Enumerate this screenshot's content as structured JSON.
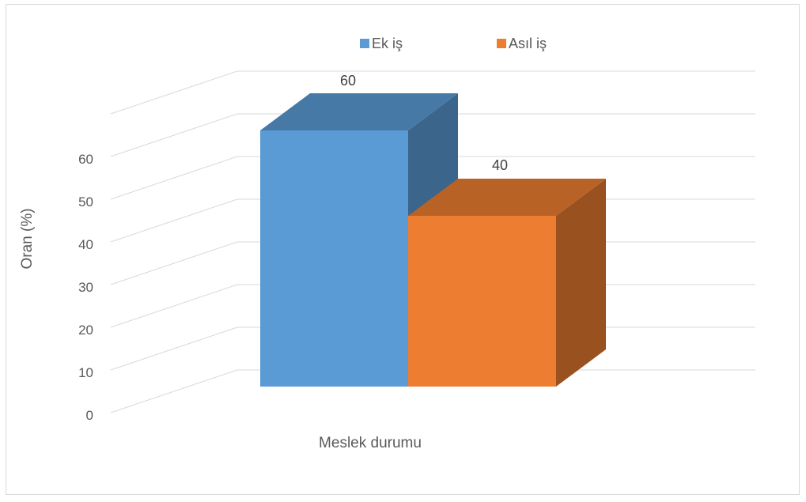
{
  "chart_data": {
    "type": "bar",
    "variant": "3d-clustered-column",
    "categories": [
      "Meslek durumu"
    ],
    "series": [
      {
        "name": "Ek iş",
        "values": [
          60
        ],
        "color": "#5b9bd5"
      },
      {
        "name": "Asıl iş",
        "values": [
          40
        ],
        "color": "#ed7d31"
      }
    ],
    "xlabel": "Meslek durumu",
    "ylabel": "Oran (%)",
    "ylim": [
      0,
      60
    ],
    "yticks": [
      0,
      10,
      20,
      30,
      40,
      50,
      60
    ],
    "data_labels": [
      "60",
      "40"
    ],
    "grid": true,
    "legend_position": "top"
  }
}
